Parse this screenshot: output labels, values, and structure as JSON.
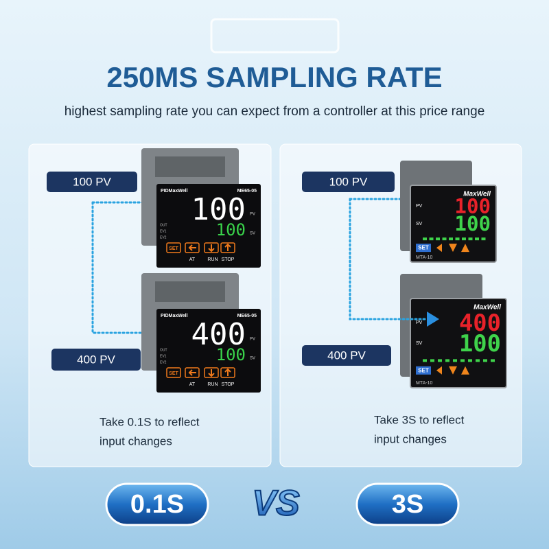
{
  "header": {
    "title": "250MS SAMPLING RATE",
    "subtitle": "highest  sampling rate you can expect from a controller at this price range"
  },
  "panels": [
    {
      "pv_label": "100 PV",
      "new_pv_label": "400 PV",
      "caption": [
        "Take 0.1S to reflect",
        "input changes"
      ],
      "device": {
        "brand": "PIDMaxWell",
        "model": "ME65-05",
        "pv_tag": "PV",
        "sv_tag": "SV",
        "indicators": [
          "OUT",
          "EV1",
          "EV2"
        ],
        "set": "SET",
        "keys": [
          "AT",
          "RUN",
          "STOP"
        ]
      },
      "readings": [
        {
          "pv": "100",
          "sv": "100"
        },
        {
          "pv": "400",
          "sv": "100"
        }
      ]
    },
    {
      "pv_label": "100 PV",
      "new_pv_label": "400 PV",
      "caption": [
        "Take 3S to reflect",
        "input changes"
      ],
      "device": {
        "brand": "MaxWell",
        "model": "MTA-10",
        "pv_tag": "PV",
        "sv_tag": "SV",
        "set": "SET"
      },
      "readings": [
        {
          "pv": "100",
          "sv": "100"
        },
        {
          "pv": "400",
          "sv": "100"
        }
      ]
    }
  ],
  "footer": {
    "left": "0.1S",
    "vs": "VS",
    "right": "3S"
  }
}
